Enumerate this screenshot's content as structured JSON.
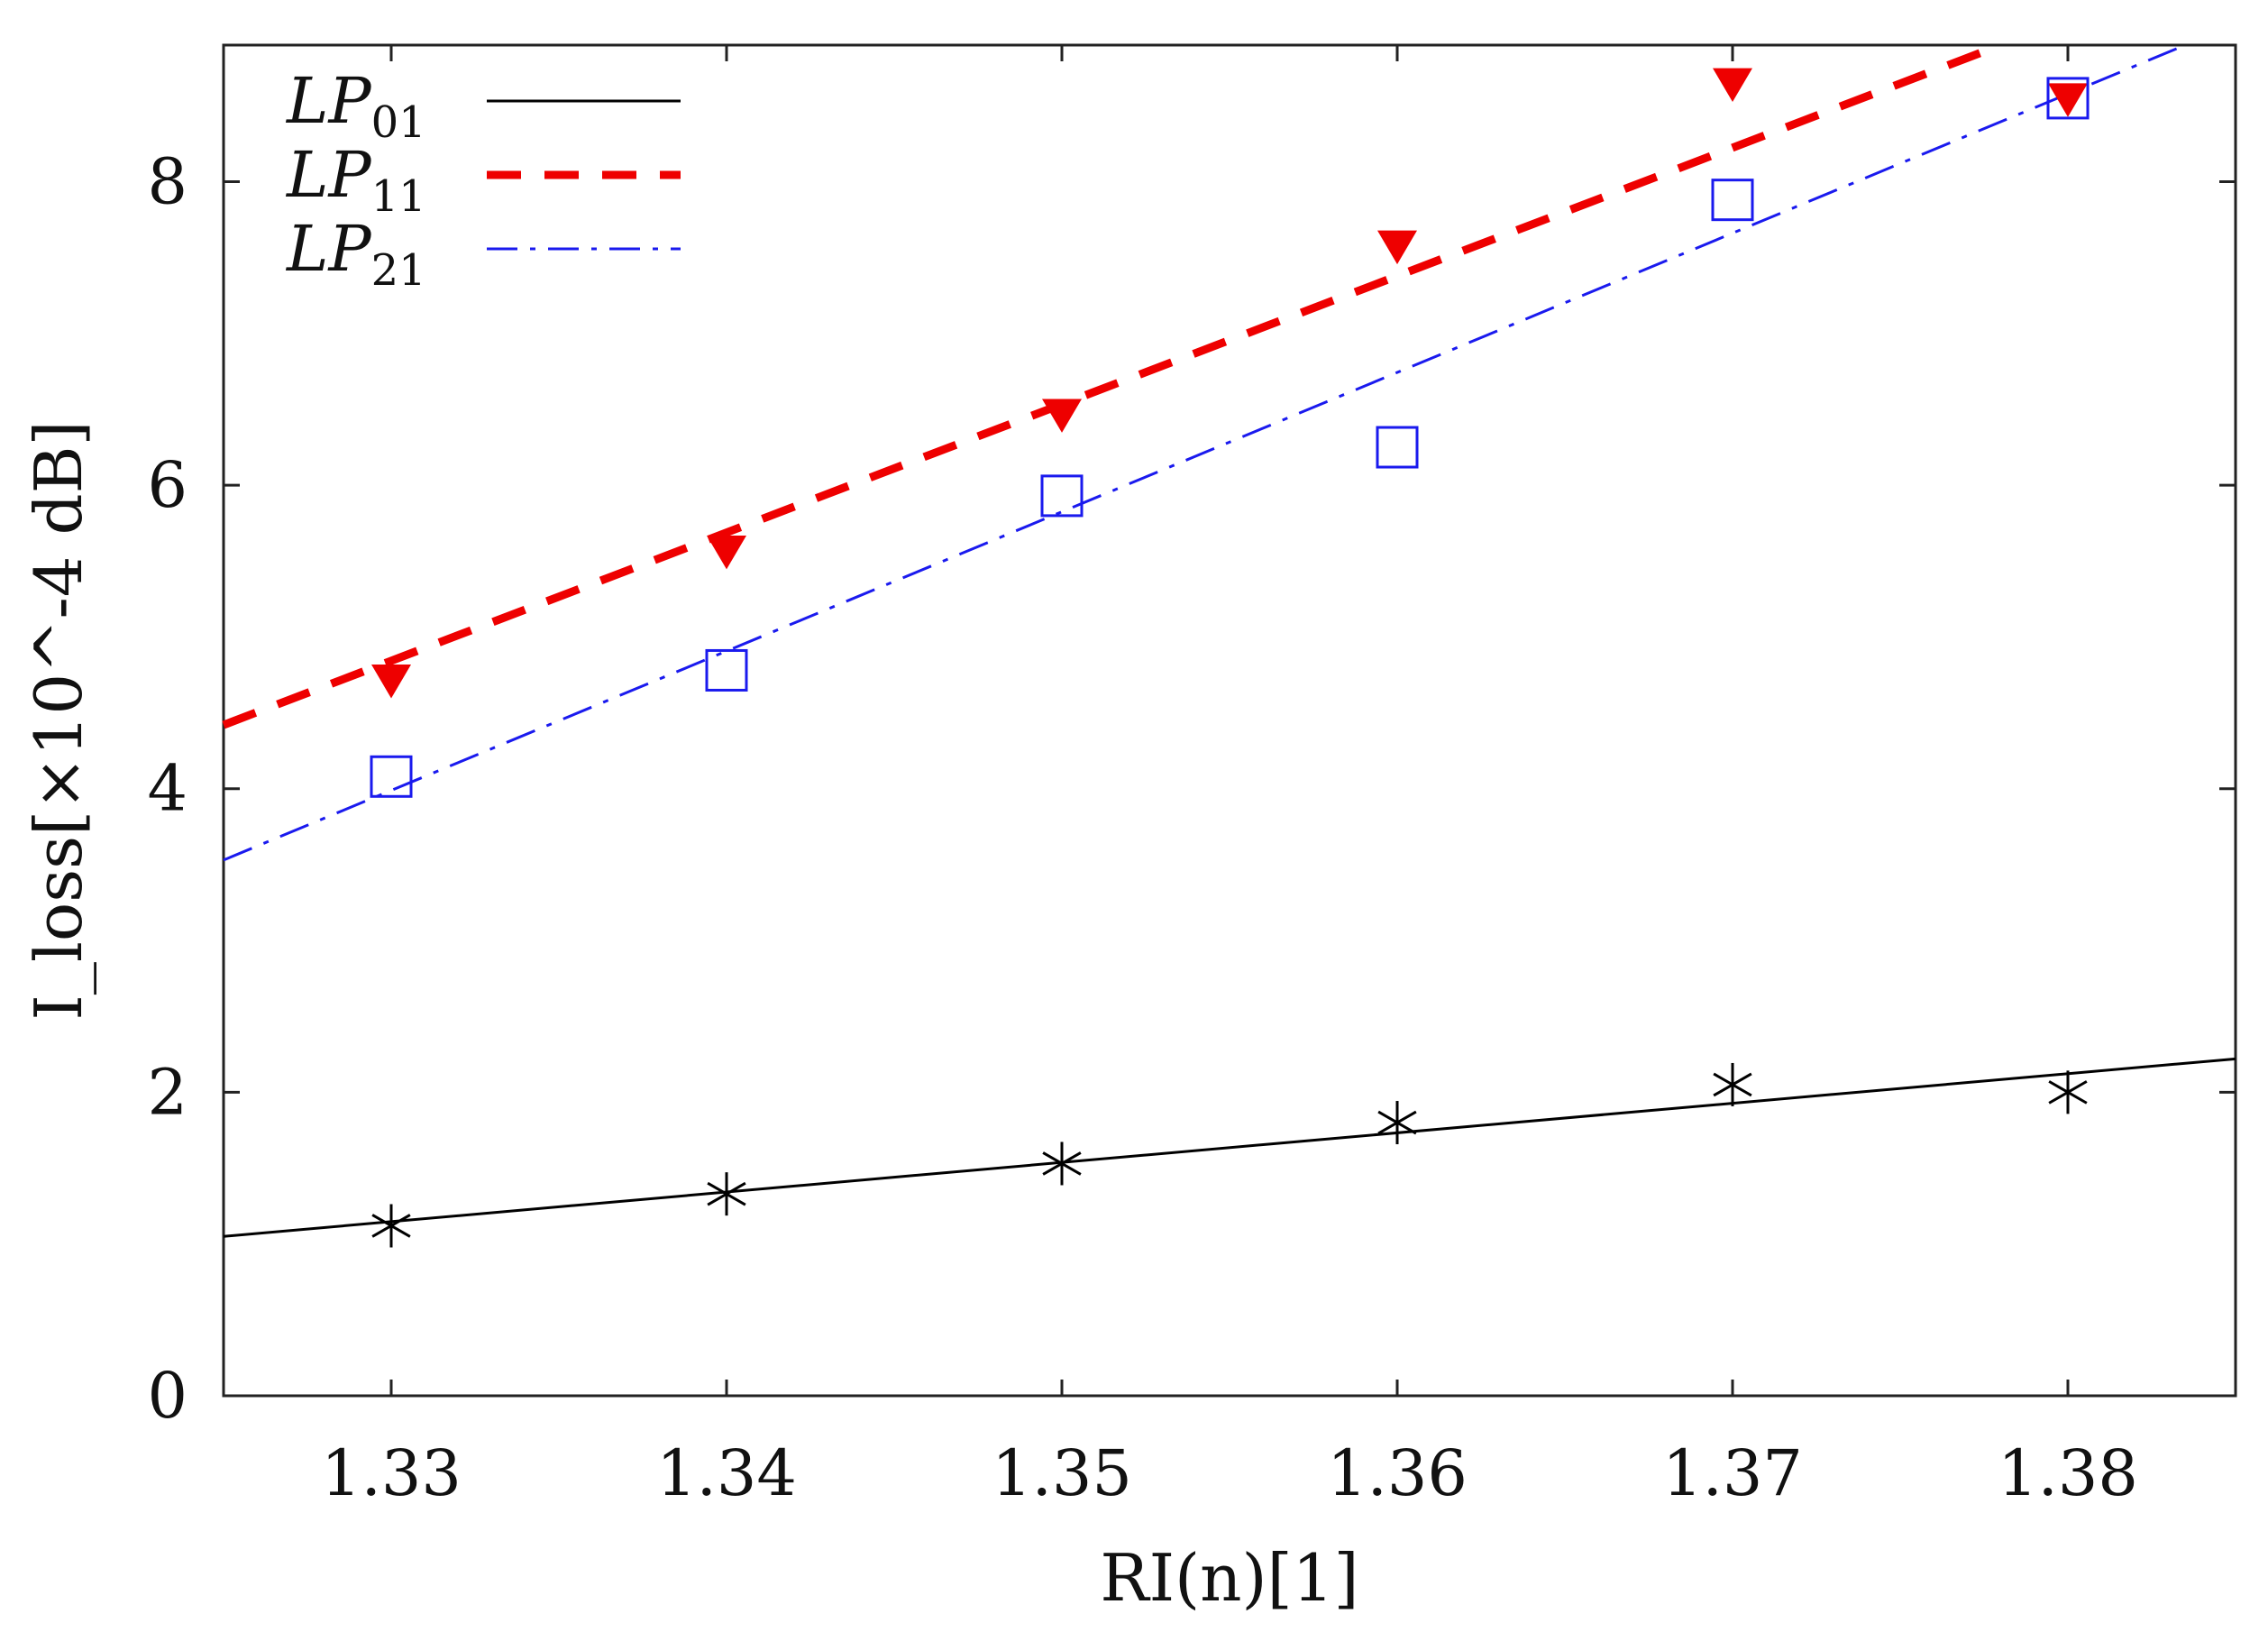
{
  "chart_data": {
    "type": "scatter",
    "title": "",
    "xlabel": "RI(n)[1]",
    "ylabel": "I_loss[×10^-4 dB]",
    "xlim": [
      1.325,
      1.385
    ],
    "ylim": [
      0,
      8.9
    ],
    "x_ticks": [
      "1.33",
      "1.34",
      "1.35",
      "1.36",
      "1.37",
      "1.38"
    ],
    "y_ticks": [
      "0",
      "2",
      "4",
      "6",
      "8"
    ],
    "legend_position": "top-left",
    "series": [
      {
        "name": "LP01",
        "label_main": "LP",
        "label_sub": "01",
        "color": "#000000",
        "line_style": "solid",
        "marker": "asterisk",
        "x": [
          1.33,
          1.34,
          1.35,
          1.36,
          1.37,
          1.38
        ],
        "points": [
          1.12,
          1.33,
          1.53,
          1.8,
          2.05,
          2.0
        ],
        "fit": {
          "x": [
            1.325,
            1.385
          ],
          "y": [
            1.05,
            2.22
          ]
        }
      },
      {
        "name": "LP11",
        "label_main": "LP",
        "label_sub": "11",
        "color": "#ee0000",
        "line_style": "dashed",
        "marker": "triangle-down",
        "x": [
          1.33,
          1.34,
          1.35,
          1.36,
          1.37,
          1.38
        ],
        "points": [
          4.72,
          5.57,
          6.47,
          7.58,
          8.65,
          8.55
        ],
        "fit": {
          "x": [
            1.325,
            1.378
          ],
          "y": [
            4.42,
            8.9
          ]
        }
      },
      {
        "name": "LP21",
        "label_main": "LP",
        "label_sub": "21",
        "color": "#1a1aee",
        "line_style": "dashdot",
        "marker": "square",
        "x": [
          1.33,
          1.34,
          1.35,
          1.36,
          1.37,
          1.38
        ],
        "points": [
          4.08,
          4.78,
          5.93,
          6.25,
          7.88,
          8.55
        ],
        "fit": {
          "x": [
            1.325,
            1.3835
          ],
          "y": [
            3.53,
            8.9
          ]
        }
      }
    ]
  }
}
